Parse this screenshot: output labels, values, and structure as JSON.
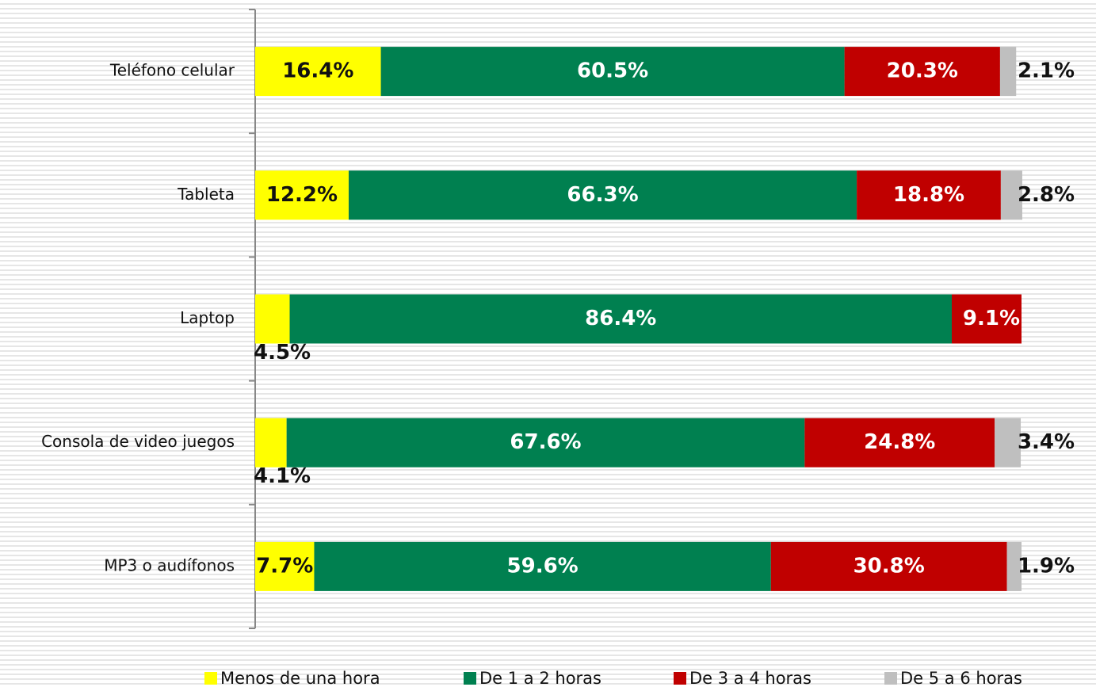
{
  "chart_data": {
    "type": "stacked-bar-horizontal",
    "categories": [
      "Teléfono celular",
      "Tableta",
      "Laptop",
      "Consola de video juegos",
      "MP3 o audífonos"
    ],
    "xlim": [
      0,
      100
    ],
    "series": [
      {
        "name": "Menos de una hora",
        "color": "#ffff00",
        "values": [
          16.4,
          12.2,
          4.5,
          4.1,
          7.7
        ],
        "value_labels": [
          "16.4%",
          "12.2%",
          "4.5%",
          "4.1%",
          "7.7%"
        ]
      },
      {
        "name": "De 1 a 2 horas",
        "color": "#008050",
        "values": [
          60.5,
          66.3,
          86.4,
          67.6,
          59.6
        ],
        "value_labels": [
          "60.5%",
          "66.3%",
          "86.4%",
          "67.6%",
          "59.6%"
        ]
      },
      {
        "name": "De 3 a 4 horas",
        "color": "#c00000",
        "values": [
          20.3,
          18.8,
          9.1,
          24.8,
          30.8
        ],
        "value_labels": [
          "20.3%",
          "18.8%",
          "9.1%",
          "24.8%",
          "30.8%"
        ]
      },
      {
        "name": "De 5 a 6 horas",
        "color": "#bfbfbf",
        "values": [
          2.1,
          2.8,
          null,
          3.4,
          1.9
        ],
        "value_labels": [
          "2.1%",
          "2.8%",
          null,
          "3.4%",
          "1.9%"
        ]
      }
    ],
    "legend": "bottom"
  }
}
